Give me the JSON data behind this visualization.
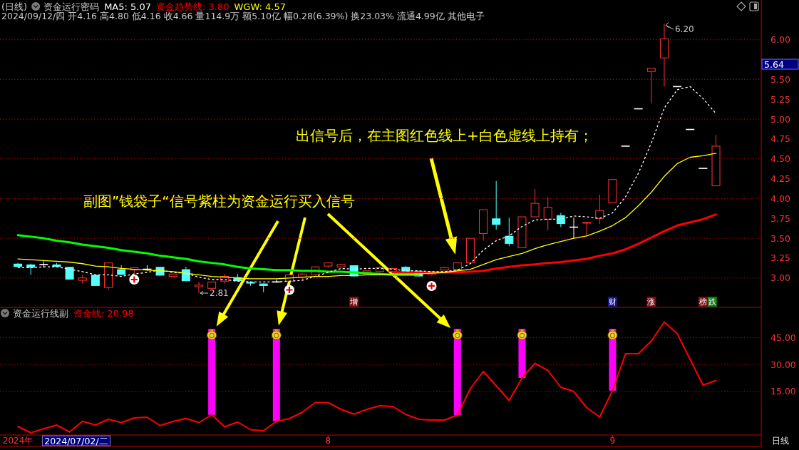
{
  "chart_data": [
    {
      "type": "candlestick",
      "title": "(日线)",
      "legend_title": "资金运行密码",
      "subtitle": "2024/09/12/四 开4.16 高4.80 低4.16 收4.66 量114.9万 额5.10亿 幅0.28(6.39%) 换23.03% 流通4.99亿 其他电子",
      "categories": [
        null,
        null,
        null,
        null,
        null,
        null,
        null,
        null,
        null,
        null,
        null,
        null,
        null,
        null,
        null,
        null,
        null,
        null,
        null,
        null,
        null,
        null,
        null,
        null,
        null,
        null,
        null,
        null,
        null,
        null,
        null,
        null,
        null,
        null,
        null,
        null,
        null,
        null,
        null,
        null,
        null,
        null,
        null,
        null,
        null,
        null,
        null,
        null,
        null,
        null,
        null,
        null,
        null,
        null,
        null,
        null,
        null,
        null
      ],
      "ohlc": [
        [
          3.18,
          3.19,
          3.13,
          3.14
        ],
        [
          3.17,
          3.18,
          3.04,
          3.13
        ],
        [
          3.17,
          3.21,
          3.13,
          3.17
        ],
        [
          3.17,
          3.19,
          3.14,
          3.14
        ],
        [
          3.14,
          3.14,
          2.98,
          2.98
        ],
        [
          2.97,
          3.04,
          2.93,
          3.0
        ],
        [
          3.04,
          3.04,
          2.9,
          2.9
        ],
        [
          2.88,
          3.19,
          2.85,
          3.19
        ],
        [
          3.11,
          3.16,
          3.04,
          3.04
        ],
        [
          3.1,
          3.14,
          3.05,
          3.13
        ],
        [
          3.11,
          3.16,
          3.09,
          3.11
        ],
        [
          3.14,
          3.14,
          3.03,
          3.03
        ],
        [
          3.02,
          3.05,
          3.02,
          3.05
        ],
        [
          3.11,
          3.14,
          2.96,
          2.96
        ],
        [
          2.89,
          2.95,
          2.81,
          2.91
        ],
        [
          2.87,
          2.95,
          2.87,
          2.95
        ],
        [
          2.96,
          3.05,
          2.93,
          3.02
        ],
        [
          3.01,
          3.05,
          2.96,
          2.96
        ],
        [
          2.95,
          2.96,
          2.9,
          2.93
        ],
        [
          2.93,
          2.93,
          2.82,
          2.9
        ],
        [
          2.95,
          2.98,
          2.94,
          2.95
        ],
        [
          2.96,
          3.04,
          2.96,
          3.04
        ],
        [
          3.01,
          3.06,
          2.97,
          3.05
        ],
        [
          3.04,
          3.14,
          3.04,
          3.14
        ],
        [
          3.15,
          3.19,
          3.13,
          3.19
        ],
        [
          3.14,
          3.18,
          3.13,
          3.17
        ],
        [
          3.16,
          3.16,
          3.02,
          3.02
        ],
        [
          3.07,
          3.09,
          3.07,
          3.09
        ],
        [
          3.08,
          3.14,
          3.07,
          3.13
        ],
        [
          3.08,
          3.13,
          3.08,
          3.12
        ],
        [
          3.14,
          3.15,
          3.07,
          3.07
        ],
        [
          3.09,
          3.09,
          3.02,
          3.02
        ],
        [
          3.04,
          3.08,
          3.03,
          3.08
        ],
        [
          3.1,
          3.14,
          3.1,
          3.13
        ],
        [
          3.11,
          3.19,
          3.11,
          3.19
        ],
        [
          3.19,
          3.5,
          3.19,
          3.5
        ],
        [
          3.56,
          3.86,
          3.47,
          3.86
        ],
        [
          3.75,
          4.22,
          3.61,
          3.67
        ],
        [
          3.53,
          3.76,
          3.4,
          3.43
        ],
        [
          3.38,
          3.77,
          3.38,
          3.77
        ],
        [
          3.77,
          4.12,
          3.77,
          3.94
        ],
        [
          3.74,
          4.02,
          3.6,
          3.89
        ],
        [
          3.79,
          3.82,
          3.64,
          3.68
        ],
        [
          3.64,
          3.76,
          3.5,
          3.64
        ],
        [
          3.69,
          3.7,
          3.53,
          3.7
        ],
        [
          3.75,
          4.05,
          3.68,
          3.85
        ],
        [
          3.95,
          4.24,
          3.95,
          4.24
        ],
        [
          4.66,
          4.66,
          4.66,
          4.66
        ],
        [
          5.13,
          5.13,
          5.13,
          5.13
        ],
        [
          5.6,
          5.64,
          5.2,
          5.64
        ],
        [
          5.77,
          6.2,
          5.41,
          6.01
        ],
        [
          5.41,
          5.41,
          5.41,
          5.41
        ],
        [
          4.87,
          4.87,
          4.87,
          4.87
        ],
        [
          4.38,
          4.38,
          4.38,
          4.38
        ],
        [
          4.16,
          4.8,
          4.16,
          4.66
        ],
        null,
        null,
        null
      ],
      "colors": [
        "#54ffff",
        "#54ffff",
        "#ffffff",
        "#54ffff",
        "#54ffff",
        "#ff3232",
        "#54ffff",
        "#ff3232",
        "#54ffff",
        "#ff3232",
        "#ffffff",
        "#54ffff",
        "#ff3232",
        "#54ffff",
        "#ff3232",
        "#ff3232",
        "#ff3232",
        "#54ffff",
        "#54ffff",
        "#54ffff",
        "#ffffff",
        "#ff3232",
        "#ff3232",
        "#ff3232",
        "#ff3232",
        "#ff3232",
        "#54ffff",
        "#ff3232",
        "#ff3232",
        "#ff3232",
        "#54ffff",
        "#54ffff",
        "#ff3232",
        "#ff3232",
        "#ff3232",
        "#ff3232",
        "#ff3232",
        "#54ffff",
        "#54ffff",
        "#ff3232",
        "#ff3232",
        "#ff3232",
        "#54ffff",
        "#ffffff",
        "#ff3232",
        "#ff3232",
        "#ff3232",
        "#ffffff",
        "#ffffff",
        "#ff3232",
        "#ff3232",
        "#ffffff",
        "#ffffff",
        "#ffffff",
        "#ff3232",
        null,
        null,
        null
      ],
      "series": [
        {
          "name": "MA5: 5.07",
          "type": "line",
          "color": "#ffffff",
          "line_style": "dashed",
          "values": [
            3.13,
            3.13,
            3.14,
            3.14,
            3.11,
            3.08,
            3.04,
            3.04,
            3.02,
            3.05,
            3.07,
            3.1,
            3.07,
            3.06,
            3.01,
            2.98,
            2.98,
            2.96,
            2.95,
            2.95,
            2.95,
            2.96,
            2.97,
            3.02,
            3.07,
            3.12,
            3.11,
            3.12,
            3.12,
            3.11,
            3.09,
            3.09,
            3.08,
            3.08,
            3.1,
            3.18,
            3.35,
            3.47,
            3.53,
            3.65,
            3.73,
            3.74,
            3.74,
            3.78,
            3.77,
            3.75,
            3.82,
            4.02,
            4.32,
            4.7,
            5.14,
            5.37,
            5.41,
            5.26,
            5.07,
            null,
            null,
            null
          ]
        },
        {
          "type": "line",
          "color": "#00ff00",
          "values": [
            3.54,
            3.52,
            3.5,
            3.47,
            3.45,
            3.42,
            3.4,
            3.38,
            3.35,
            3.33,
            3.31,
            3.28,
            3.26,
            3.24,
            3.21,
            3.19,
            3.17,
            3.14,
            3.12,
            3.11,
            3.1,
            3.1,
            3.09,
            3.09,
            3.08,
            3.08,
            3.07,
            3.06,
            3.05,
            3.04,
            3.04,
            3.04,
            null,
            null,
            null,
            null,
            null,
            null,
            null,
            null,
            null,
            null,
            null,
            null,
            null,
            null,
            null,
            null,
            null,
            null,
            null,
            null,
            null,
            null,
            null,
            null,
            null,
            null
          ]
        },
        {
          "name": "资金趋势线: 3.80",
          "type": "line",
          "color": "#ff0000",
          "values": [
            null,
            null,
            null,
            null,
            null,
            null,
            null,
            null,
            null,
            null,
            null,
            null,
            null,
            null,
            null,
            null,
            null,
            null,
            null,
            null,
            null,
            null,
            null,
            null,
            null,
            null,
            null,
            null,
            null,
            3.07,
            3.07,
            3.07,
            3.07,
            3.07,
            3.07,
            3.08,
            3.09,
            3.12,
            3.14,
            3.16,
            3.17,
            3.19,
            3.2,
            3.22,
            3.24,
            3.28,
            3.31,
            3.36,
            3.43,
            3.51,
            3.59,
            3.66,
            3.7,
            3.74,
            3.8,
            null,
            null,
            null
          ]
        },
        {
          "name": "WGW: 4.57",
          "type": "line",
          "color": "#ffff00",
          "values": [
            3.24,
            3.23,
            3.22,
            3.21,
            3.2,
            3.18,
            3.15,
            3.14,
            3.12,
            3.11,
            3.1,
            3.09,
            3.08,
            3.06,
            3.04,
            3.02,
            3.01,
            3.0,
            2.99,
            2.99,
            2.99,
            3.0,
            3.01,
            3.02,
            3.02,
            3.03,
            3.03,
            3.04,
            3.04,
            3.05,
            3.05,
            3.05,
            3.06,
            3.07,
            3.09,
            3.11,
            3.17,
            3.23,
            3.27,
            3.31,
            3.37,
            3.42,
            3.46,
            3.5,
            3.53,
            3.59,
            3.66,
            3.76,
            3.91,
            4.08,
            4.28,
            4.44,
            4.52,
            4.54,
            4.57,
            null,
            null,
            null
          ]
        },
        {
          "type": "scatter",
          "color": "#ffffff",
          "marker": "circle",
          "values": [
            null,
            null,
            null,
            null,
            null,
            null,
            null,
            null,
            null,
            2.98,
            null,
            null,
            null,
            null,
            null,
            null,
            null,
            null,
            null,
            null,
            null,
            2.85,
            null,
            null,
            null,
            null,
            null,
            null,
            null,
            null,
            null,
            null,
            2.9,
            null,
            null,
            null,
            null,
            null,
            null,
            null,
            null,
            null,
            null,
            null,
            null,
            null,
            null,
            null,
            null,
            null,
            null,
            null,
            null,
            null,
            null,
            null,
            null,
            null
          ]
        }
      ],
      "ylim": [
        2.63,
        6.5
      ],
      "yticks": [
        {
          "value": 3,
          "label": "3.00"
        },
        {
          "value": 3.25,
          "label": "3.25"
        },
        {
          "value": 3.5,
          "label": "3.50"
        },
        {
          "value": 3.75,
          "label": "3.75"
        },
        {
          "value": 4,
          "label": "4.00"
        },
        {
          "value": 4.25,
          "label": "4.25"
        },
        {
          "value": 4.5,
          "label": "4.50"
        },
        {
          "value": 4.75,
          "label": "4.75"
        },
        {
          "value": 5,
          "label": "5.00"
        },
        {
          "value": 5.25,
          "label": "5.25"
        },
        {
          "value": 5.5,
          "label": "5.50"
        },
        {
          "value": 6,
          "label": "6.00"
        }
      ],
      "grid": "y",
      "tick_labels": "y",
      "annotations": [
        "出信号后，在主图红色线上+白色虚线上持有；",
        "副图”钱袋子“信号紫柱为资金运行买入信号",
        "2.81",
        "6.20",
        "5.64",
        "增",
        "财",
        "涨",
        "榜",
        "跌"
      ]
    },
    {
      "type": "line",
      "legend_title": "资金运行线副",
      "categories": [
        "2024年",
        null,
        null,
        null,
        null,
        null,
        null,
        null,
        null,
        null,
        null,
        null,
        null,
        null,
        null,
        null,
        null,
        null,
        null,
        null,
        null,
        null,
        null,
        null,
        "8",
        null,
        null,
        null,
        null,
        null,
        null,
        null,
        null,
        null,
        null,
        null,
        null,
        null,
        null,
        null,
        null,
        null,
        null,
        null,
        null,
        null,
        "9",
        null,
        null,
        null,
        null,
        null,
        null,
        null,
        null,
        null,
        null,
        null
      ],
      "series": [
        {
          "type": "bar",
          "color": "#ff00ff",
          "base": [
            null,
            null,
            null,
            null,
            null,
            null,
            null,
            null,
            null,
            null,
            null,
            null,
            null,
            null,
            null,
            1.7,
            null,
            null,
            null,
            null,
            -1.9,
            null,
            null,
            null,
            null,
            null,
            null,
            null,
            null,
            null,
            null,
            null,
            null,
            null,
            1.6,
            null,
            null,
            null,
            null,
            22.4,
            null,
            null,
            null,
            null,
            null,
            null,
            15.3,
            null,
            null,
            null,
            null,
            null,
            null,
            null,
            null,
            null,
            null,
            null
          ],
          "values": [
            null,
            null,
            null,
            null,
            null,
            null,
            null,
            null,
            null,
            null,
            null,
            null,
            null,
            null,
            null,
            48.3,
            null,
            null,
            null,
            null,
            51.9,
            null,
            null,
            null,
            null,
            null,
            null,
            null,
            null,
            null,
            null,
            null,
            null,
            null,
            48.4,
            null,
            null,
            null,
            null,
            27.6,
            null,
            null,
            null,
            null,
            null,
            null,
            34.7,
            null,
            null,
            null,
            null,
            null,
            null,
            null,
            null,
            null,
            null,
            null
          ]
        },
        {
          "name": "资金线: 20.98",
          "color": "#ff0000",
          "values": [
            -4.8,
            -8.3,
            -6.1,
            -4.0,
            -7.9,
            -1.9,
            -4.0,
            -0.8,
            -2.6,
            0.0,
            0.4,
            -4.3,
            -2.0,
            -0.3,
            -2.6,
            1.7,
            -5.0,
            -2.3,
            -6.6,
            -7.2,
            -1.9,
            -0.4,
            3.2,
            8.6,
            8.6,
            4.8,
            2.1,
            4.8,
            6.8,
            6.4,
            2.0,
            -0.8,
            -1.2,
            -1.2,
            1.6,
            16.4,
            26.1,
            18.0,
            9.8,
            22.4,
            30.6,
            26.6,
            17.2,
            14.8,
            5.8,
            0.5,
            15.3,
            36.0,
            36.0,
            43.2,
            53.8,
            47.3,
            32.8,
            18.4,
            21.0,
            null,
            null,
            null
          ]
        }
      ],
      "ylim": [
        -9.6,
        61.6
      ],
      "yticks": [
        {
          "value": 15,
          "label": "15.00"
        },
        {
          "value": 30,
          "label": "30.00"
        },
        {
          "value": 45,
          "label": "45.00"
        }
      ],
      "grid": "y",
      "annotations": [
        "日线",
        "2024/07/02/二"
      ]
    }
  ]
}
